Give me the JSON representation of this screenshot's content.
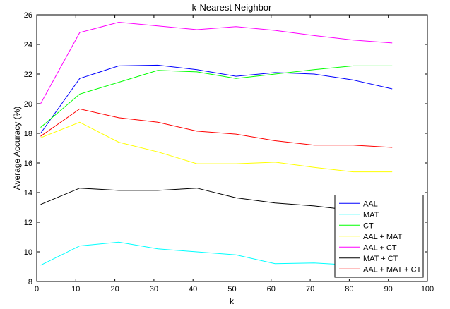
{
  "chart_data": {
    "type": "line",
    "title": "k-Nearest Neighbor",
    "xlabel": "k",
    "ylabel": "Average Accuracy (%)",
    "xlim": [
      0,
      100
    ],
    "ylim": [
      8,
      26
    ],
    "xticks": [
      0,
      10,
      20,
      30,
      40,
      50,
      60,
      70,
      80,
      90,
      100
    ],
    "yticks": [
      8,
      10,
      12,
      14,
      16,
      18,
      20,
      22,
      24,
      26
    ],
    "grid": false,
    "legend_position": "bottom-right",
    "x": [
      1,
      11,
      21,
      31,
      41,
      51,
      61,
      71,
      81,
      91
    ],
    "series": [
      {
        "name": "AAL",
        "color": "#0000ff",
        "values": [
          18.0,
          21.7,
          22.55,
          22.6,
          22.3,
          21.85,
          22.1,
          22.0,
          21.6,
          21.0
        ]
      },
      {
        "name": "MAT",
        "color": "#00ffff",
        "values": [
          9.1,
          10.4,
          10.65,
          10.2,
          10.0,
          9.8,
          9.2,
          9.25,
          9.1,
          9.1
        ]
      },
      {
        "name": "CT",
        "color": "#00ff00",
        "values": [
          18.4,
          20.65,
          21.45,
          22.25,
          22.15,
          21.7,
          22.0,
          22.3,
          22.55,
          22.55
        ]
      },
      {
        "name": "AAL + MAT",
        "color": "#ffff00",
        "values": [
          17.7,
          18.75,
          17.4,
          16.75,
          15.95,
          15.95,
          16.05,
          15.7,
          15.4,
          15.4
        ]
      },
      {
        "name": "AAL + CT",
        "color": "#ff00ff",
        "values": [
          20.0,
          24.8,
          25.5,
          25.25,
          25.0,
          25.2,
          24.95,
          24.6,
          24.3,
          24.1
        ]
      },
      {
        "name": "MAT + CT",
        "color": "#000000",
        "values": [
          13.2,
          14.3,
          14.15,
          14.15,
          14.3,
          13.65,
          13.3,
          13.1,
          12.8,
          12.6
        ]
      },
      {
        "name": "AAL + MAT + CT",
        "color": "#ff0000",
        "values": [
          17.8,
          19.65,
          19.05,
          18.75,
          18.15,
          17.95,
          17.5,
          17.2,
          17.2,
          17.05
        ]
      }
    ]
  }
}
